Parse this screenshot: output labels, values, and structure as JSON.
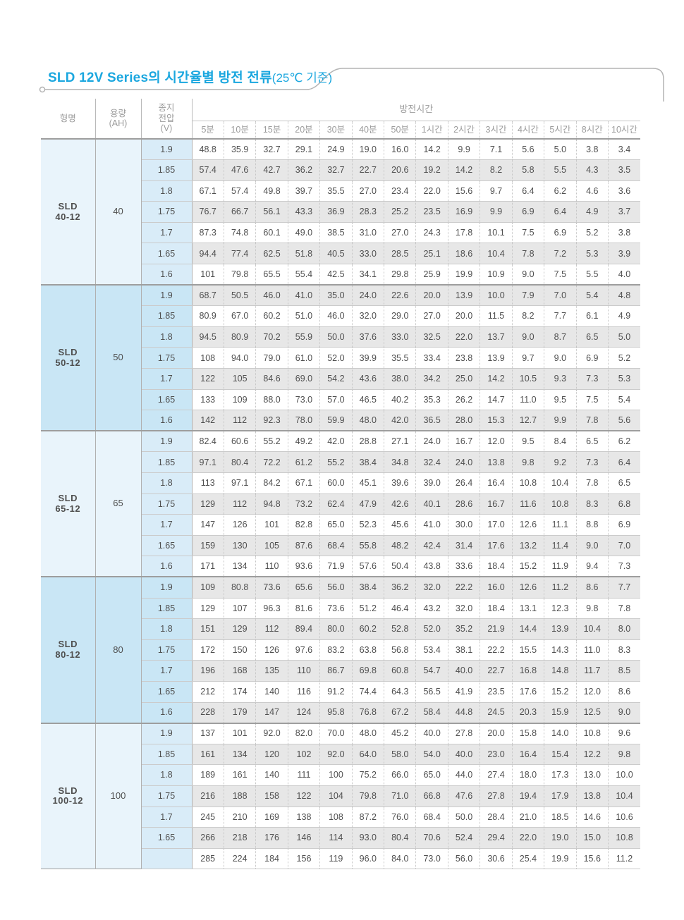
{
  "page": {
    "title_main": "SLD 12V Series의 시간율별 방전 전류",
    "title_suffix": "(25℃ 기준)"
  },
  "colors": {
    "title_blue": "#1ba7df",
    "block_light_bg": "#e9f4fb",
    "block_light_voltage_bg": "#d9ecf8",
    "block_dark_bg": "#c9e6f5",
    "stripe_gray": "#e7e7e7",
    "border_dark": "#9e9e9e",
    "border_light": "#cbcbcb",
    "text_data": "#4f4f4f",
    "text_header": "#9c9c9c"
  },
  "table": {
    "headers": {
      "model": "형명",
      "capacity_line1": "용량",
      "capacity_line2": "(AH)",
      "voltage_line1": "종지",
      "voltage_line2": "전압",
      "voltage_line3": "(V)",
      "discharge_time": "방전시간",
      "times": [
        "5분",
        "10분",
        "15분",
        "20분",
        "30분",
        "40분",
        "50분",
        "1시간",
        "2시간",
        "3시간",
        "4시간",
        "5시간",
        "8시간",
        "10시간"
      ]
    },
    "groups": [
      {
        "model_line1": "SLD",
        "model_line2": "40-12",
        "capacity": "40",
        "rows": [
          {
            "voltage": "1.9",
            "values": [
              "48.8",
              "35.9",
              "32.7",
              "29.1",
              "24.9",
              "19.0",
              "16.0",
              "14.2",
              "9.9",
              "7.1",
              "5.6",
              "5.0",
              "3.8",
              "3.4"
            ]
          },
          {
            "voltage": "1.85",
            "values": [
              "57.4",
              "47.6",
              "42.7",
              "36.2",
              "32.7",
              "22.7",
              "20.6",
              "19.2",
              "14.2",
              "8.2",
              "5.8",
              "5.5",
              "4.3",
              "3.5"
            ]
          },
          {
            "voltage": "1.8",
            "values": [
              "67.1",
              "57.4",
              "49.8",
              "39.7",
              "35.5",
              "27.0",
              "23.4",
              "22.0",
              "15.6",
              "9.7",
              "6.4",
              "6.2",
              "4.6",
              "3.6"
            ]
          },
          {
            "voltage": "1.75",
            "values": [
              "76.7",
              "66.7",
              "56.1",
              "43.3",
              "36.9",
              "28.3",
              "25.2",
              "23.5",
              "16.9",
              "9.9",
              "6.9",
              "6.4",
              "4.9",
              "3.7"
            ]
          },
          {
            "voltage": "1.7",
            "values": [
              "87.3",
              "74.8",
              "60.1",
              "49.0",
              "38.5",
              "31.0",
              "27.0",
              "24.3",
              "17.8",
              "10.1",
              "7.5",
              "6.9",
              "5.2",
              "3.8"
            ]
          },
          {
            "voltage": "1.65",
            "values": [
              "94.4",
              "77.4",
              "62.5",
              "51.8",
              "40.5",
              "33.0",
              "28.5",
              "25.1",
              "18.6",
              "10.4",
              "7.8",
              "7.2",
              "5.3",
              "3.9"
            ]
          },
          {
            "voltage": "1.6",
            "values": [
              "101",
              "79.8",
              "65.5",
              "55.4",
              "42.5",
              "34.1",
              "29.8",
              "25.9",
              "19.9",
              "10.9",
              "9.0",
              "7.5",
              "5.5",
              "4.0"
            ]
          }
        ]
      },
      {
        "model_line1": "SLD",
        "model_line2": "50-12",
        "capacity": "50",
        "rows": [
          {
            "voltage": "1.9",
            "values": [
              "68.7",
              "50.5",
              "46.0",
              "41.0",
              "35.0",
              "24.0",
              "22.6",
              "20.0",
              "13.9",
              "10.0",
              "7.9",
              "7.0",
              "5.4",
              "4.8"
            ]
          },
          {
            "voltage": "1.85",
            "values": [
              "80.9",
              "67.0",
              "60.2",
              "51.0",
              "46.0",
              "32.0",
              "29.0",
              "27.0",
              "20.0",
              "11.5",
              "8.2",
              "7.7",
              "6.1",
              "4.9"
            ]
          },
          {
            "voltage": "1.8",
            "values": [
              "94.5",
              "80.9",
              "70.2",
              "55.9",
              "50.0",
              "37.6",
              "33.0",
              "32.5",
              "22.0",
              "13.7",
              "9.0",
              "8.7",
              "6.5",
              "5.0"
            ]
          },
          {
            "voltage": "1.75",
            "values": [
              "108",
              "94.0",
              "79.0",
              "61.0",
              "52.0",
              "39.9",
              "35.5",
              "33.4",
              "23.8",
              "13.9",
              "9.7",
              "9.0",
              "6.9",
              "5.2"
            ]
          },
          {
            "voltage": "1.7",
            "values": [
              "122",
              "105",
              "84.6",
              "69.0",
              "54.2",
              "43.6",
              "38.0",
              "34.2",
              "25.0",
              "14.2",
              "10.5",
              "9.3",
              "7.3",
              "5.3"
            ]
          },
          {
            "voltage": "1.65",
            "values": [
              "133",
              "109",
              "88.0",
              "73.0",
              "57.0",
              "46.5",
              "40.2",
              "35.3",
              "26.2",
              "14.7",
              "11.0",
              "9.5",
              "7.5",
              "5.4"
            ]
          },
          {
            "voltage": "1.6",
            "values": [
              "142",
              "112",
              "92.3",
              "78.0",
              "59.9",
              "48.0",
              "42.0",
              "36.5",
              "28.0",
              "15.3",
              "12.7",
              "9.9",
              "7.8",
              "5.6"
            ]
          }
        ]
      },
      {
        "model_line1": "SLD",
        "model_line2": "65-12",
        "capacity": "65",
        "rows": [
          {
            "voltage": "1.9",
            "values": [
              "82.4",
              "60.6",
              "55.2",
              "49.2",
              "42.0",
              "28.8",
              "27.1",
              "24.0",
              "16.7",
              "12.0",
              "9.5",
              "8.4",
              "6.5",
              "6.2"
            ]
          },
          {
            "voltage": "1.85",
            "values": [
              "97.1",
              "80.4",
              "72.2",
              "61.2",
              "55.2",
              "38.4",
              "34.8",
              "32.4",
              "24.0",
              "13.8",
              "9.8",
              "9.2",
              "7.3",
              "6.4"
            ]
          },
          {
            "voltage": "1.8",
            "values": [
              "113",
              "97.1",
              "84.2",
              "67.1",
              "60.0",
              "45.1",
              "39.6",
              "39.0",
              "26.4",
              "16.4",
              "10.8",
              "10.4",
              "7.8",
              "6.5"
            ]
          },
          {
            "voltage": "1.75",
            "values": [
              "129",
              "112",
              "94.8",
              "73.2",
              "62.4",
              "47.9",
              "42.6",
              "40.1",
              "28.6",
              "16.7",
              "11.6",
              "10.8",
              "8.3",
              "6.8"
            ]
          },
          {
            "voltage": "1.7",
            "values": [
              "147",
              "126",
              "101",
              "82.8",
              "65.0",
              "52.3",
              "45.6",
              "41.0",
              "30.0",
              "17.0",
              "12.6",
              "11.1",
              "8.8",
              "6.9"
            ]
          },
          {
            "voltage": "1.65",
            "values": [
              "159",
              "130",
              "105",
              "87.6",
              "68.4",
              "55.8",
              "48.2",
              "42.4",
              "31.4",
              "17.6",
              "13.2",
              "11.4",
              "9.0",
              "7.0"
            ]
          },
          {
            "voltage": "1.6",
            "values": [
              "171",
              "134",
              "110",
              "93.6",
              "71.9",
              "57.6",
              "50.4",
              "43.8",
              "33.6",
              "18.4",
              "15.2",
              "11.9",
              "9.4",
              "7.3"
            ]
          }
        ]
      },
      {
        "model_line1": "SLD",
        "model_line2": "80-12",
        "capacity": "80",
        "rows": [
          {
            "voltage": "1.9",
            "values": [
              "109",
              "80.8",
              "73.6",
              "65.6",
              "56.0",
              "38.4",
              "36.2",
              "32.0",
              "22.2",
              "16.0",
              "12.6",
              "11.2",
              "8.6",
              "7.7"
            ]
          },
          {
            "voltage": "1.85",
            "values": [
              "129",
              "107",
              "96.3",
              "81.6",
              "73.6",
              "51.2",
              "46.4",
              "43.2",
              "32.0",
              "18.4",
              "13.1",
              "12.3",
              "9.8",
              "7.8"
            ]
          },
          {
            "voltage": "1.8",
            "values": [
              "151",
              "129",
              "112",
              "89.4",
              "80.0",
              "60.2",
              "52.8",
              "52.0",
              "35.2",
              "21.9",
              "14.4",
              "13.9",
              "10.4",
              "8.0"
            ]
          },
          {
            "voltage": "1.75",
            "values": [
              "172",
              "150",
              "126",
              "97.6",
              "83.2",
              "63.8",
              "56.8",
              "53.4",
              "38.1",
              "22.2",
              "15.5",
              "14.3",
              "11.0",
              "8.3"
            ]
          },
          {
            "voltage": "1.7",
            "values": [
              "196",
              "168",
              "135",
              "110",
              "86.7",
              "69.8",
              "60.8",
              "54.7",
              "40.0",
              "22.7",
              "16.8",
              "14.8",
              "11.7",
              "8.5"
            ]
          },
          {
            "voltage": "1.65",
            "values": [
              "212",
              "174",
              "140",
              "116",
              "91.2",
              "74.4",
              "64.3",
              "56.5",
              "41.9",
              "23.5",
              "17.6",
              "15.2",
              "12.0",
              "8.6"
            ]
          },
          {
            "voltage": "1.6",
            "values": [
              "228",
              "179",
              "147",
              "124",
              "95.8",
              "76.8",
              "67.2",
              "58.4",
              "44.8",
              "24.5",
              "20.3",
              "15.9",
              "12.5",
              "9.0"
            ]
          }
        ]
      },
      {
        "model_line1": "SLD",
        "model_line2": "100-12",
        "capacity": "100",
        "rows": [
          {
            "voltage": "1.9",
            "values": [
              "137",
              "101",
              "92.0",
              "82.0",
              "70.0",
              "48.0",
              "45.2",
              "40.0",
              "27.8",
              "20.0",
              "15.8",
              "14.0",
              "10.8",
              "9.6"
            ]
          },
          {
            "voltage": "1.85",
            "values": [
              "161",
              "134",
              "120",
              "102",
              "92.0",
              "64.0",
              "58.0",
              "54.0",
              "40.0",
              "23.0",
              "16.4",
              "15.4",
              "12.2",
              "9.8"
            ]
          },
          {
            "voltage": "1.8",
            "values": [
              "189",
              "161",
              "140",
              "111",
              "100",
              "75.2",
              "66.0",
              "65.0",
              "44.0",
              "27.4",
              "18.0",
              "17.3",
              "13.0",
              "10.0"
            ]
          },
          {
            "voltage": "1.75",
            "values": [
              "216",
              "188",
              "158",
              "122",
              "104",
              "79.8",
              "71.0",
              "66.8",
              "47.6",
              "27.8",
              "19.4",
              "17.9",
              "13.8",
              "10.4"
            ]
          },
          {
            "voltage": "1.7",
            "values": [
              "245",
              "210",
              "169",
              "138",
              "108",
              "87.2",
              "76.0",
              "68.4",
              "50.0",
              "28.4",
              "21.0",
              "18.5",
              "14.6",
              "10.6"
            ]
          },
          {
            "voltage": "1.65",
            "values": [
              "266",
              "218",
              "176",
              "146",
              "114",
              "93.0",
              "80.4",
              "70.6",
              "52.4",
              "29.4",
              "22.0",
              "19.0",
              "15.0",
              "10.8"
            ]
          },
          {
            "voltage": "",
            "values": [
              "285",
              "224",
              "184",
              "156",
              "119",
              "96.0",
              "84.0",
              "73.0",
              "56.0",
              "30.6",
              "25.4",
              "19.9",
              "15.6",
              "11.2"
            ]
          }
        ]
      }
    ]
  }
}
